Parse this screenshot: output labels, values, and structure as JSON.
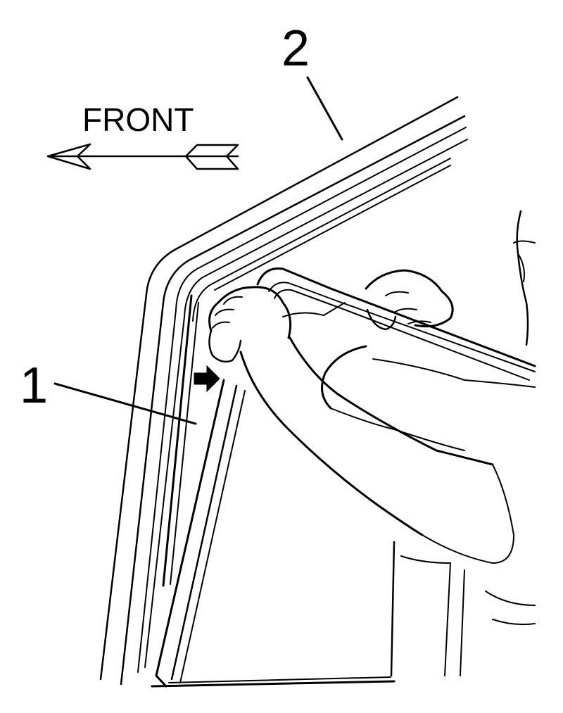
{
  "labels": {
    "front": "FRONT",
    "callout_1": "1",
    "callout_2": "2"
  },
  "colors": {
    "line": "#000000",
    "background": "#ffffff"
  },
  "icons": {
    "direction_arrow": "front-arrow-icon",
    "push_indicator": "push-arrow-icon"
  }
}
